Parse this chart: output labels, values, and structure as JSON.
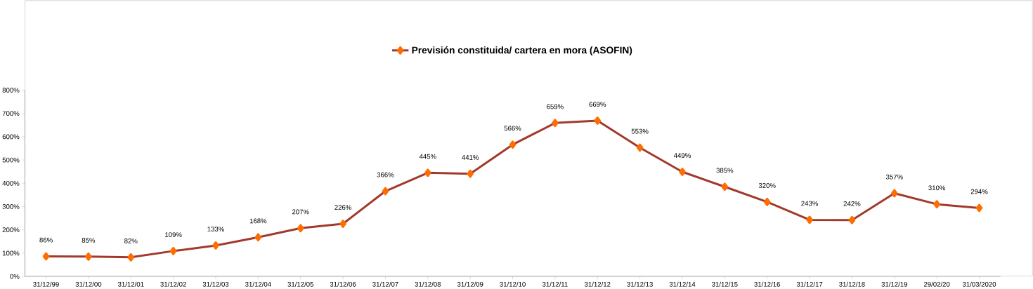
{
  "chart_data": {
    "type": "line",
    "categories": [
      "31/12/99",
      "31/12/00",
      "31/12/01",
      "31/12/02",
      "31/12/03",
      "31/12/04",
      "31/12/05",
      "31/12/06",
      "31/12/07",
      "31/12/08",
      "31/12/09",
      "31/12/10",
      "31/12/11",
      "31/12/12",
      "31/12/13",
      "31/12/14",
      "31/12/15",
      "31/12/16",
      "31/12/17",
      "31/12/18",
      "31/12/19",
      "29/02/20",
      "31/03/2020"
    ],
    "series": [
      {
        "name": "Previsión constituida/ cartera en mora (ASOFIN)",
        "color": "#a23a2c",
        "values": [
          86,
          85,
          82,
          109,
          133,
          168,
          207,
          226,
          366,
          445,
          441,
          566,
          659,
          669,
          553,
          449,
          385,
          320,
          243,
          242,
          357,
          310,
          294
        ],
        "value_labels": [
          "86%",
          "85%",
          "82%",
          "109%",
          "133%",
          "168%",
          "207%",
          "226%",
          "366%",
          "445%",
          "441%",
          "566%",
          "659%",
          "669%",
          "553%",
          "449%",
          "385%",
          "320%",
          "243%",
          "242%",
          "357%",
          "310%",
          "294%"
        ]
      }
    ],
    "ylim": [
      0,
      800
    ],
    "yticks": [
      {
        "value": 0,
        "label": "0%"
      },
      {
        "value": 100,
        "label": "100%"
      },
      {
        "value": 200,
        "label": "200%"
      },
      {
        "value": 300,
        "label": "300%"
      },
      {
        "value": 400,
        "label": "400%"
      },
      {
        "value": 500,
        "label": "500%"
      },
      {
        "value": 600,
        "label": "600%"
      },
      {
        "value": 700,
        "label": "700%"
      },
      {
        "value": 800,
        "label": "800%"
      }
    ],
    "marker": "diamond",
    "legend": "top",
    "grid": false
  }
}
